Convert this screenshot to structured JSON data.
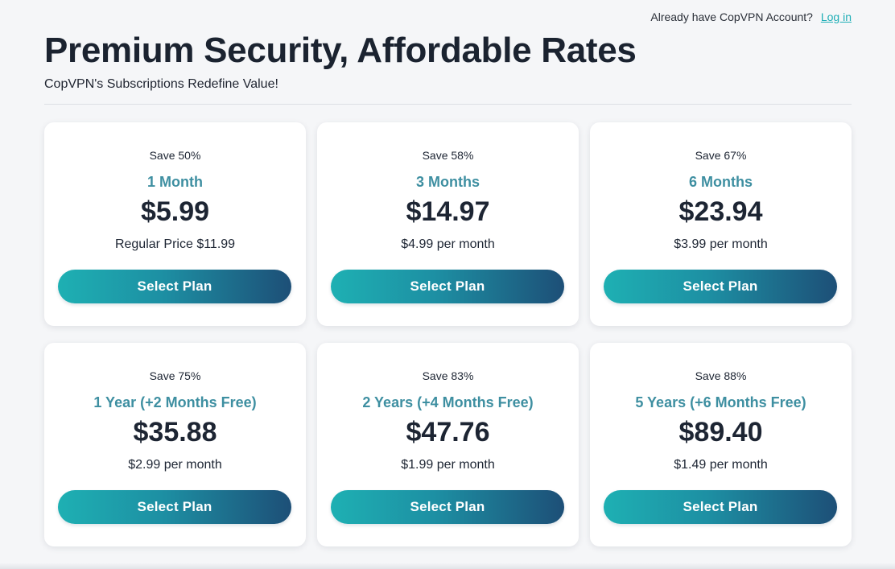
{
  "header": {
    "account_prompt": "Already have CopVPN Account?",
    "login_label": "Log in",
    "title": "Premium Security, Affordable Rates",
    "subtitle": "CopVPN's Subscriptions Redefine Value!"
  },
  "plans": [
    {
      "save": "Save 50%",
      "term": "1 Month",
      "price": "$5.99",
      "note": "Regular Price $11.99",
      "button": "Select Plan"
    },
    {
      "save": "Save 58%",
      "term": "3 Months",
      "price": "$14.97",
      "note": "$4.99 per month",
      "button": "Select Plan"
    },
    {
      "save": "Save 67%",
      "term": "6 Months",
      "price": "$23.94",
      "note": "$3.99 per month",
      "button": "Select Plan"
    },
    {
      "save": "Save 75%",
      "term": "1 Year (+2 Months Free)",
      "price": "$35.88",
      "note": "$2.99 per month",
      "button": "Select Plan"
    },
    {
      "save": "Save 83%",
      "term": "2 Years (+4 Months Free)",
      "price": "$47.76",
      "note": "$1.99 per month",
      "button": "Select Plan"
    },
    {
      "save": "Save 88%",
      "term": "5 Years (+6 Months Free)",
      "price": "$89.40",
      "note": "$1.49 per month",
      "button": "Select Plan"
    }
  ],
  "colors": {
    "accent": "#1eaeb6",
    "term_text": "#3e8fa1",
    "button_gradient_start": "#1eb0b3",
    "button_gradient_end": "#1d4f77",
    "background": "#f5f6f8"
  }
}
